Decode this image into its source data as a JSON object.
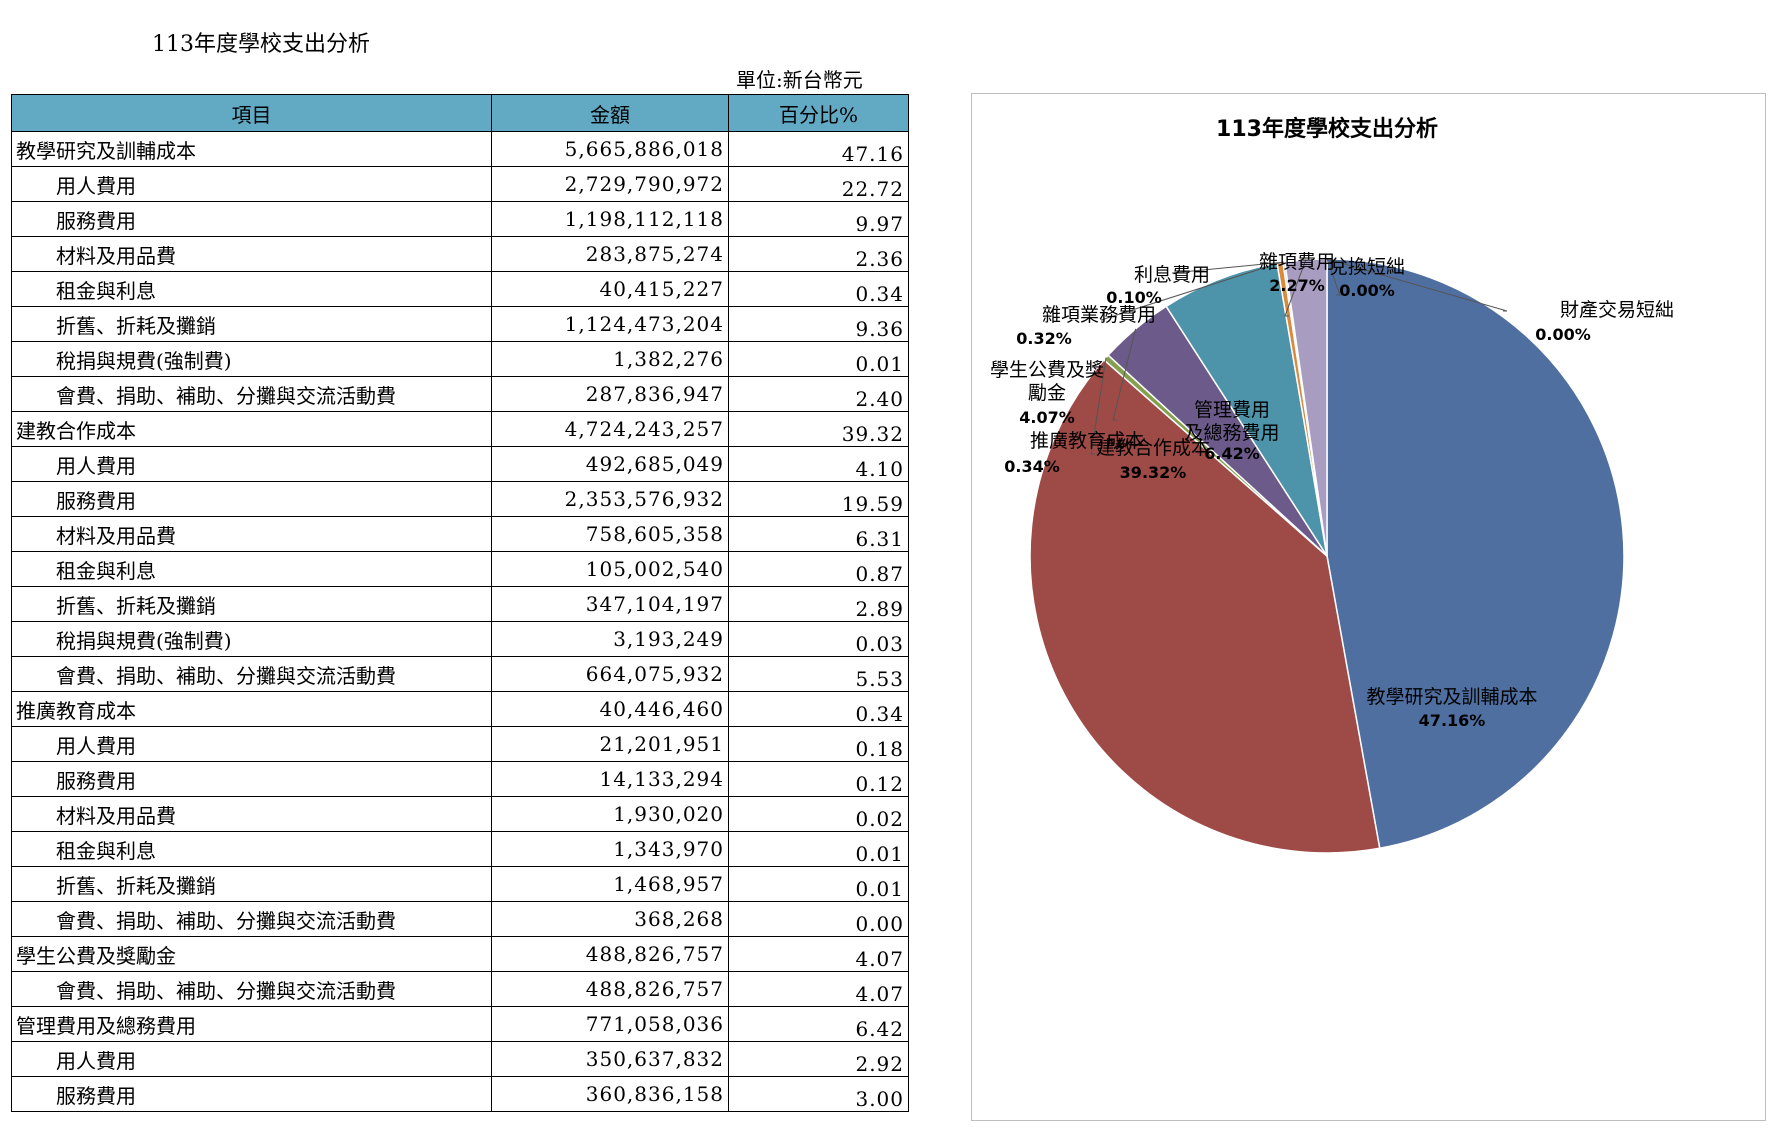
{
  "page": {
    "title": "113年度學校支出分析",
    "unit": "單位:新台幣元"
  },
  "table": {
    "headers": [
      "項目",
      "金額",
      "百分比%"
    ],
    "rows": [
      {
        "item": "教學研究及訓輔成本",
        "amount": "5,665,886,018",
        "pct": "47.16",
        "level": 0
      },
      {
        "item": "用人費用",
        "amount": "2,729,790,972",
        "pct": "22.72",
        "level": 1
      },
      {
        "item": "服務費用",
        "amount": "1,198,112,118",
        "pct": "9.97",
        "level": 1
      },
      {
        "item": "材料及用品費",
        "amount": "283,875,274",
        "pct": "2.36",
        "level": 1
      },
      {
        "item": "租金與利息",
        "amount": "40,415,227",
        "pct": "0.34",
        "level": 1
      },
      {
        "item": "折舊、折耗及攤銷",
        "amount": "1,124,473,204",
        "pct": "9.36",
        "level": 1
      },
      {
        "item": "稅捐與規費(強制費)",
        "amount": "1,382,276",
        "pct": "0.01",
        "level": 1
      },
      {
        "item": "會費、捐助、補助、分攤與交流活動費",
        "amount": "287,836,947",
        "pct": "2.40",
        "level": 1
      },
      {
        "item": "建教合作成本",
        "amount": "4,724,243,257",
        "pct": "39.32",
        "level": 0
      },
      {
        "item": "用人費用",
        "amount": "492,685,049",
        "pct": "4.10",
        "level": 1
      },
      {
        "item": "服務費用",
        "amount": "2,353,576,932",
        "pct": "19.59",
        "level": 1
      },
      {
        "item": "材料及用品費",
        "amount": "758,605,358",
        "pct": "6.31",
        "level": 1
      },
      {
        "item": "租金與利息",
        "amount": "105,002,540",
        "pct": "0.87",
        "level": 1
      },
      {
        "item": "折舊、折耗及攤銷",
        "amount": "347,104,197",
        "pct": "2.89",
        "level": 1
      },
      {
        "item": "稅捐與規費(強制費)",
        "amount": "3,193,249",
        "pct": "0.03",
        "level": 1
      },
      {
        "item": "會費、捐助、補助、分攤與交流活動費",
        "amount": "664,075,932",
        "pct": "5.53",
        "level": 1
      },
      {
        "item": "推廣教育成本",
        "amount": "40,446,460",
        "pct": "0.34",
        "level": 0
      },
      {
        "item": "用人費用",
        "amount": "21,201,951",
        "pct": "0.18",
        "level": 1
      },
      {
        "item": "服務費用",
        "amount": "14,133,294",
        "pct": "0.12",
        "level": 1
      },
      {
        "item": "材料及用品費",
        "amount": "1,930,020",
        "pct": "0.02",
        "level": 1
      },
      {
        "item": "租金與利息",
        "amount": "1,343,970",
        "pct": "0.01",
        "level": 1
      },
      {
        "item": "折舊、折耗及攤銷",
        "amount": "1,468,957",
        "pct": "0.01",
        "level": 1
      },
      {
        "item": "會費、捐助、補助、分攤與交流活動費",
        "amount": "368,268",
        "pct": "0.00",
        "level": 1
      },
      {
        "item": "學生公費及獎勵金",
        "amount": "488,826,757",
        "pct": "4.07",
        "level": 0
      },
      {
        "item": "會費、捐助、補助、分攤與交流活動費",
        "amount": "488,826,757",
        "pct": "4.07",
        "level": 1
      },
      {
        "item": "管理費用及總務費用",
        "amount": "771,058,036",
        "pct": "6.42",
        "level": 0
      },
      {
        "item": "用人費用",
        "amount": "350,637,832",
        "pct": "2.92",
        "level": 1
      },
      {
        "item": "服務費用",
        "amount": "360,836,158",
        "pct": "3.00",
        "level": 1
      }
    ]
  },
  "chart_data": {
    "type": "pie",
    "title": "113年度學校支出分析",
    "slices": [
      {
        "label": "教學研究及訓輔成本",
        "value": 47.16,
        "pct_label": "47.16%",
        "color": "#4f6fa0"
      },
      {
        "label": "建教合作成本",
        "value": 39.32,
        "pct_label": "39.32%",
        "color": "#9e4a47"
      },
      {
        "label": "推廣教育成本",
        "value": 0.34,
        "pct_label": "0.34%",
        "color": "#84a04f"
      },
      {
        "label": "學生公費及獎勵金",
        "value": 4.07,
        "pct_label": "4.07%",
        "color": "#6b5a8a"
      },
      {
        "label": "管理費用及總務費用",
        "value": 6.42,
        "pct_label": "6.42%",
        "color": "#4d93aa"
      },
      {
        "label": "雜項業務費用",
        "value": 0.32,
        "pct_label": "0.32%",
        "color": "#d98a3c"
      },
      {
        "label": "利息費用",
        "value": 0.1,
        "pct_label": "0.10%",
        "color": "#8fa8cc"
      },
      {
        "label": "雜項費用",
        "value": 2.27,
        "pct_label": "2.27%",
        "color": "#a89cc0"
      },
      {
        "label": "兌換短絀",
        "value": 0.0,
        "pct_label": "0.00%",
        "color": "#c8a0a0"
      },
      {
        "label": "財產交易短絀",
        "value": 0.0,
        "pct_label": "0.00%",
        "color": "#b9cd96"
      }
    ]
  }
}
